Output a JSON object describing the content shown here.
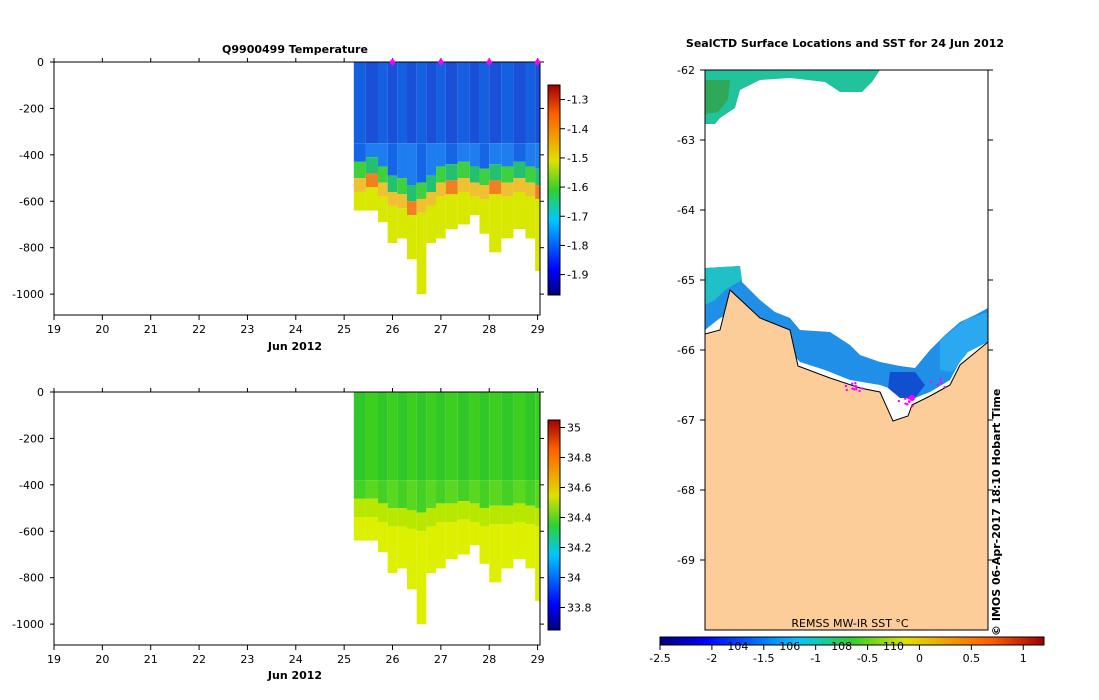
{
  "chart_data": [
    {
      "type": "heatmap",
      "title": "Q9900499  Temperature",
      "xlabel": "Jun 2012",
      "ylabel": "",
      "x_ticks": [
        "19",
        "20",
        "21",
        "22",
        "23",
        "24",
        "25",
        "26",
        "27",
        "28",
        "29"
      ],
      "xlim": [
        19,
        29.05
      ],
      "ylim": [
        -1090,
        0
      ],
      "y_ticks": [
        0,
        -200,
        -400,
        -600,
        -800,
        -1000
      ],
      "grid": false,
      "colorbar": {
        "ticks": [
          -1.3,
          -1.4,
          -1.5,
          -1.6,
          -1.7,
          -1.8,
          -1.9
        ],
        "range": [
          -1.97,
          -1.25
        ]
      },
      "markers_color": "#ff00ff",
      "profiles": [
        {
          "x": 25.2,
          "depth": 640,
          "warm_top": 500
        },
        {
          "x": 25.45,
          "depth": 640,
          "warm_top": 480
        },
        {
          "x": 25.7,
          "depth": 690,
          "warm_top": 520
        },
        {
          "x": 25.9,
          "depth": 780,
          "warm_top": 560
        },
        {
          "x": 26.1,
          "depth": 760,
          "warm_top": 570
        },
        {
          "x": 26.3,
          "depth": 850,
          "warm_top": 600
        },
        {
          "x": 26.5,
          "depth": 1000,
          "warm_top": 590
        },
        {
          "x": 26.7,
          "depth": 780,
          "warm_top": 560
        },
        {
          "x": 26.9,
          "depth": 760,
          "warm_top": 520
        },
        {
          "x": 27.1,
          "depth": 720,
          "warm_top": 510
        },
        {
          "x": 27.35,
          "depth": 700,
          "warm_top": 500
        },
        {
          "x": 27.6,
          "depth": 660,
          "warm_top": 520
        },
        {
          "x": 27.8,
          "depth": 740,
          "warm_top": 530
        },
        {
          "x": 28.0,
          "depth": 820,
          "warm_top": 510
        },
        {
          "x": 28.25,
          "depth": 760,
          "warm_top": 520
        },
        {
          "x": 28.5,
          "depth": 720,
          "warm_top": 500
        },
        {
          "x": 28.75,
          "depth": 760,
          "warm_top": 520
        },
        {
          "x": 28.95,
          "depth": 900,
          "warm_top": 530
        }
      ]
    },
    {
      "type": "heatmap",
      "title": "",
      "xlabel": "Jun 2012",
      "ylabel": "",
      "x_ticks": [
        "19",
        "20",
        "21",
        "22",
        "23",
        "24",
        "25",
        "26",
        "27",
        "28",
        "29"
      ],
      "xlim": [
        19,
        29.05
      ],
      "ylim": [
        -1090,
        0
      ],
      "y_ticks": [
        0,
        -200,
        -400,
        -600,
        -800,
        -1000
      ],
      "grid": false,
      "colorbar": {
        "ticks": [
          35,
          34.8,
          34.6,
          34.4,
          34.2,
          34,
          33.8
        ],
        "range": [
          33.65,
          35.05
        ]
      },
      "profiles": [
        {
          "x": 25.2,
          "depth": 640,
          "fresh_top": 460
        },
        {
          "x": 25.45,
          "depth": 640,
          "fresh_top": 460
        },
        {
          "x": 25.7,
          "depth": 690,
          "fresh_top": 480
        },
        {
          "x": 25.9,
          "depth": 780,
          "fresh_top": 500
        },
        {
          "x": 26.1,
          "depth": 760,
          "fresh_top": 500
        },
        {
          "x": 26.3,
          "depth": 850,
          "fresh_top": 510
        },
        {
          "x": 26.5,
          "depth": 1000,
          "fresh_top": 520
        },
        {
          "x": 26.7,
          "depth": 780,
          "fresh_top": 500
        },
        {
          "x": 26.9,
          "depth": 760,
          "fresh_top": 480
        },
        {
          "x": 27.1,
          "depth": 720,
          "fresh_top": 480
        },
        {
          "x": 27.35,
          "depth": 700,
          "fresh_top": 470
        },
        {
          "x": 27.6,
          "depth": 660,
          "fresh_top": 480
        },
        {
          "x": 27.8,
          "depth": 740,
          "fresh_top": 500
        },
        {
          "x": 28.0,
          "depth": 820,
          "fresh_top": 490
        },
        {
          "x": 28.25,
          "depth": 760,
          "fresh_top": 490
        },
        {
          "x": 28.5,
          "depth": 720,
          "fresh_top": 480
        },
        {
          "x": 28.75,
          "depth": 760,
          "fresh_top": 490
        },
        {
          "x": 28.95,
          "depth": 900,
          "fresh_top": 500
        }
      ]
    },
    {
      "type": "map",
      "title": "SealCTD Surface Locations and SST for 24 Jun 2012",
      "ylim": [
        -70,
        -62
      ],
      "y_ticks": [
        -62,
        -63,
        -64,
        -65,
        -66,
        -67,
        -68,
        -69
      ],
      "land_color": "#fccc99",
      "colorbar_label": "REMSS MW-IR SST °C",
      "colorbar": {
        "ticks": [
          -2.5,
          -2,
          -1.5,
          -1,
          -0.5,
          0,
          0.5,
          1
        ],
        "range": [
          -2.5,
          1.2
        ],
        "inner_labels": [
          "104",
          "106",
          "108",
          "110"
        ]
      },
      "credit": "©  IMOS 06-Apr-2017 18:10 Hobart Time"
    }
  ]
}
